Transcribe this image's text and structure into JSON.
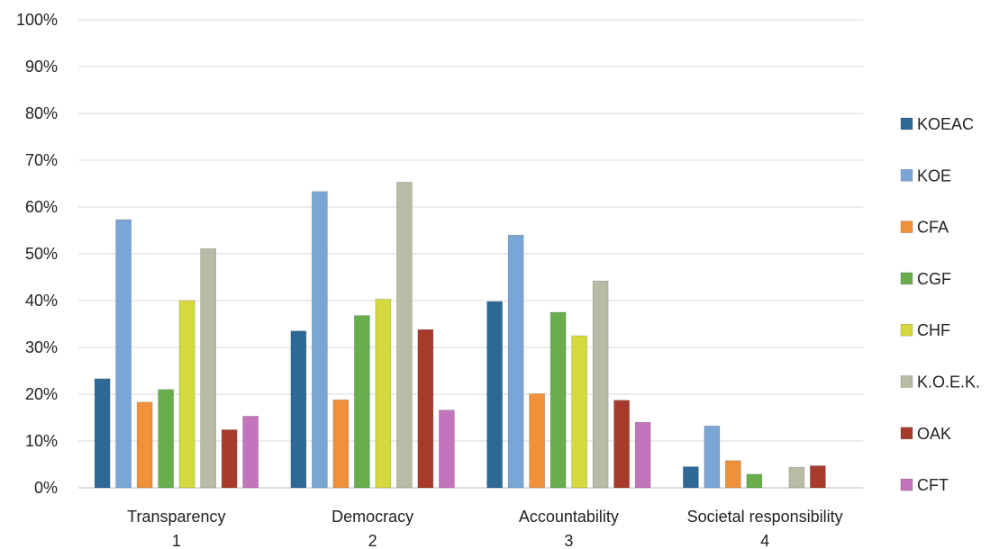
{
  "chart_data": {
    "type": "bar",
    "title": "",
    "xlabel": "",
    "ylabel": "",
    "ylim": [
      0,
      1
    ],
    "yticks": [
      "0%",
      "10%",
      "20%",
      "30%",
      "40%",
      "50%",
      "60%",
      "70%",
      "80%",
      "90%",
      "100%"
    ],
    "grid": true,
    "legend_position": "right",
    "categories": [
      {
        "name": "Transparency",
        "index": "1"
      },
      {
        "name": "Democracy",
        "index": "2"
      },
      {
        "name": "Accountability",
        "index": "3"
      },
      {
        "name": "Societal responsibility",
        "index": "4"
      }
    ],
    "series": [
      {
        "name": "KOEAC",
        "color": "#2E6996",
        "values": [
          0.233,
          0.335,
          0.398,
          0.045
        ]
      },
      {
        "name": "KOE",
        "color": "#7AA6D6",
        "values": [
          0.573,
          0.633,
          0.54,
          0.132
        ]
      },
      {
        "name": "CFA",
        "color": "#F0913A",
        "values": [
          0.183,
          0.188,
          0.201,
          0.058
        ]
      },
      {
        "name": "CGF",
        "color": "#68AE4D",
        "values": [
          0.21,
          0.368,
          0.375,
          0.029
        ]
      },
      {
        "name": "CHF",
        "color": "#D4D93D",
        "values": [
          0.4,
          0.403,
          0.325,
          0.0
        ]
      },
      {
        "name": "K.O.E.K.",
        "color": "#B8BCA6",
        "values": [
          0.511,
          0.653,
          0.442,
          0.044
        ]
      },
      {
        "name": "OAK",
        "color": "#A73A2B",
        "values": [
          0.124,
          0.338,
          0.187,
          0.047
        ]
      },
      {
        "name": "CFT",
        "color": "#C275BC",
        "values": [
          0.153,
          0.166,
          0.14,
          0.0
        ]
      }
    ],
    "legend_labels": [
      "KOEAC",
      "KOE",
      "CFA",
      "CGF",
      "CHF",
      "K.O.E.K.",
      " OAK",
      "CFT"
    ]
  }
}
